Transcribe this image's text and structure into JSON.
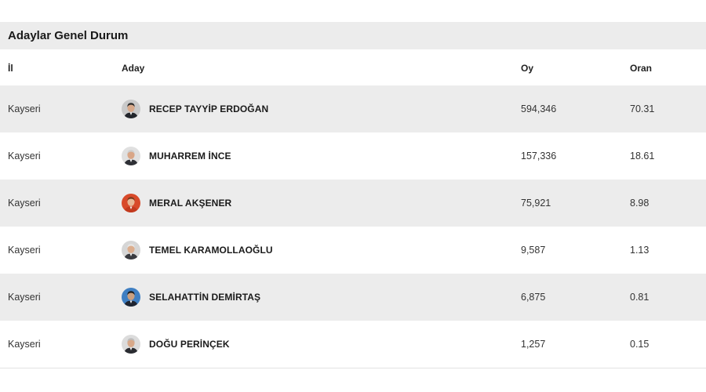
{
  "panel": {
    "title": "Adaylar Genel Durum"
  },
  "columns": {
    "il": "İl",
    "aday": "Aday",
    "oy": "Oy",
    "oran": "Oran"
  },
  "rows": [
    {
      "il": "Kayseri",
      "aday": "RECEP TAYYİP ERDOĞAN",
      "oy": "594,346",
      "oran": "70.31",
      "avatar_bg": "#c9c9c9",
      "skin": "#d8a98a",
      "hair": "#2b2b2b",
      "suit": "#22252b"
    },
    {
      "il": "Kayseri",
      "aday": "MUHARREM İNCE",
      "oy": "157,336",
      "oran": "18.61",
      "avatar_bg": "#e0e0e0",
      "skin": "#d9a687",
      "hair": "#cfcfcf",
      "suit": "#2d2f35"
    },
    {
      "il": "Kayseri",
      "aday": "MERAL AKŞENER",
      "oy": "75,921",
      "oran": "8.98",
      "avatar_bg": "#d84a2a",
      "skin": "#e8b796",
      "hair": "#7a3b1f",
      "suit": "#c23a1e"
    },
    {
      "il": "Kayseri",
      "aday": "TEMEL KARAMOLLAOĞLU",
      "oy": "9,587",
      "oran": "1.13",
      "avatar_bg": "#d6d6d6",
      "skin": "#dcae8e",
      "hair": "#e6e6e6",
      "suit": "#3a3b40"
    },
    {
      "il": "Kayseri",
      "aday": "SELAHATTİN DEMİRTAŞ",
      "oy": "6,875",
      "oran": "0.81",
      "avatar_bg": "#3f7fc2",
      "skin": "#caa080",
      "hair": "#1d1d1d",
      "suit": "#1f2430"
    },
    {
      "il": "Kayseri",
      "aday": "DOĞU PERİNÇEK",
      "oy": "1,257",
      "oran": "0.15",
      "avatar_bg": "#dcdcdc",
      "skin": "#d8a98a",
      "hair": "#bdbdbd",
      "suit": "#2a2c31"
    }
  ]
}
